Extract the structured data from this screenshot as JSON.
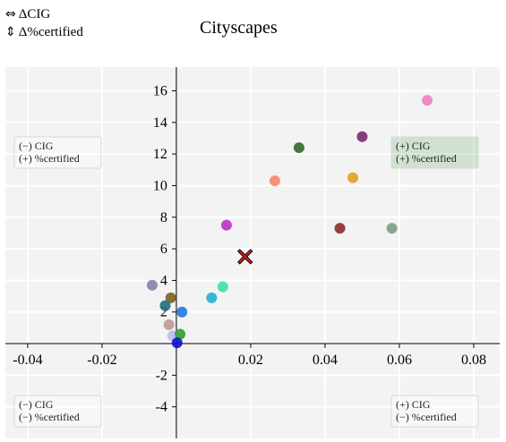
{
  "legend": {
    "x_item": {
      "icon": "left-right-arrow-icon",
      "label": "ΔCIG"
    },
    "y_item": {
      "icon": "up-down-arrow-icon",
      "label": "Δ%certified"
    }
  },
  "chart_data": {
    "type": "scatter",
    "title": "Cityscapes",
    "xlabel": "",
    "ylabel": "",
    "xlim": [
      -0.046,
      0.087
    ],
    "ylim": [
      -6.0,
      17.5
    ],
    "grid": true,
    "x_ticks": [
      -0.04,
      -0.02,
      0.02,
      0.04,
      0.06,
      0.08
    ],
    "x_tick_labels": [
      "-0.04",
      "-0.02",
      "0.02",
      "0.04",
      "0.06",
      "0.08"
    ],
    "y_ticks": [
      -4,
      -2,
      2,
      4,
      6,
      8,
      10,
      12,
      14,
      16
    ],
    "y_tick_labels": [
      "-4",
      "-2",
      "2",
      "4",
      "6",
      "8",
      "10",
      "12",
      "14",
      "16"
    ],
    "quadrant_labels": [
      {
        "position": "top-left",
        "lines": [
          "(−) CIG",
          "(+) %certified"
        ],
        "highlighted": false
      },
      {
        "position": "top-right",
        "lines": [
          "(+) CIG",
          "(+) %certified"
        ],
        "highlighted": true
      },
      {
        "position": "bottom-left",
        "lines": [
          "(−) CIG",
          "(−) %certified"
        ],
        "highlighted": false
      },
      {
        "position": "bottom-right",
        "lines": [
          "(+) CIG",
          "(−) %certified"
        ],
        "highlighted": false
      }
    ],
    "points": [
      {
        "x": 0.0675,
        "y": 15.4,
        "color": "#f07fc4",
        "marker": "circle"
      },
      {
        "x": 0.05,
        "y": 13.1,
        "color": "#7a2a6a",
        "marker": "circle"
      },
      {
        "x": 0.033,
        "y": 12.4,
        "color": "#2e6b2a",
        "marker": "circle"
      },
      {
        "x": 0.0475,
        "y": 10.5,
        "color": "#e0a020",
        "marker": "circle"
      },
      {
        "x": 0.0265,
        "y": 10.3,
        "color": "#f4876a",
        "marker": "circle"
      },
      {
        "x": 0.0135,
        "y": 7.5,
        "color": "#c030c8",
        "marker": "circle"
      },
      {
        "x": 0.044,
        "y": 7.3,
        "color": "#8b2a2a",
        "marker": "circle"
      },
      {
        "x": 0.058,
        "y": 7.3,
        "color": "#7a9e84",
        "marker": "circle"
      },
      {
        "x": 0.0185,
        "y": 5.5,
        "color": "#e02020",
        "marker": "x"
      },
      {
        "x": -0.0065,
        "y": 3.7,
        "color": "#8e7ea8",
        "marker": "circle"
      },
      {
        "x": 0.0125,
        "y": 3.6,
        "color": "#3ee0a0",
        "marker": "circle"
      },
      {
        "x": -0.0015,
        "y": 2.9,
        "color": "#7a6020",
        "marker": "circle"
      },
      {
        "x": 0.0095,
        "y": 2.9,
        "color": "#20b0d0",
        "marker": "circle"
      },
      {
        "x": -0.003,
        "y": 2.4,
        "color": "#1e6e7e",
        "marker": "circle"
      },
      {
        "x": 0.0015,
        "y": 2.0,
        "color": "#2078e0",
        "marker": "circle"
      },
      {
        "x": -0.002,
        "y": 1.2,
        "color": "#c09a90",
        "marker": "circle"
      },
      {
        "x": -0.001,
        "y": 0.5,
        "color": "#c0b8f0",
        "marker": "circle"
      },
      {
        "x": 0.001,
        "y": 0.6,
        "color": "#30a030",
        "marker": "circle"
      },
      {
        "x": 0.0002,
        "y": 0.05,
        "color": "#1010d0",
        "marker": "circle"
      }
    ]
  }
}
